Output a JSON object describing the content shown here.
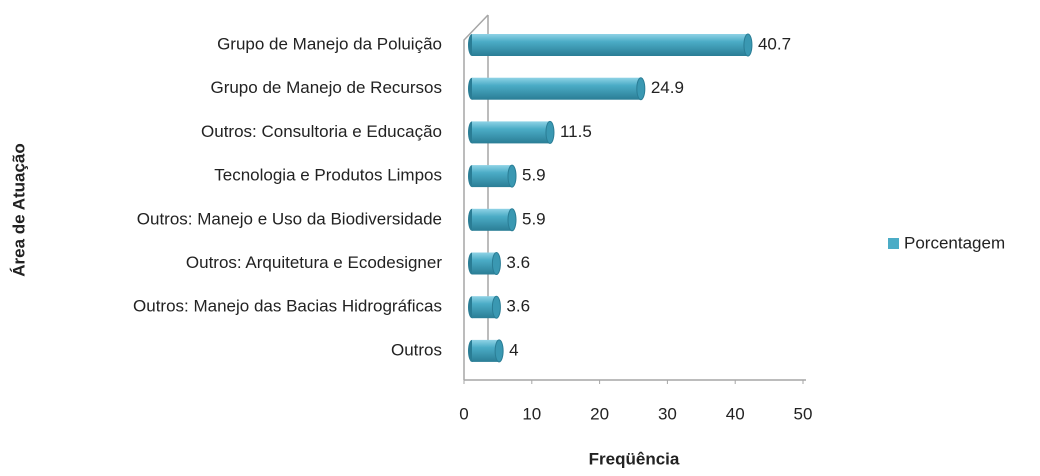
{
  "chart_data": {
    "type": "bar",
    "orientation": "horizontal",
    "categories": [
      "Grupo de Manejo da Poluição",
      "Grupo de Manejo de Recursos",
      "Outros: Consultoria e Educação",
      "Tecnologia e Produtos Limpos",
      "Outros: Manejo e Uso da Biodiversidade",
      "Outros: Arquitetura e Ecodesigner",
      "Outros: Manejo das Bacias Hidrográficas",
      "Outros"
    ],
    "series": [
      {
        "name": "Porcentagem",
        "color": "#4bacc6",
        "values": [
          40.7,
          24.9,
          11.5,
          5.9,
          5.9,
          3.6,
          3.6,
          4
        ]
      }
    ],
    "xlim": [
      0,
      50
    ],
    "xticks": [
      0,
      10,
      20,
      30,
      40,
      50
    ],
    "x_label": "Freqüência",
    "y_label": "Área de Atuação",
    "legend": "right"
  }
}
